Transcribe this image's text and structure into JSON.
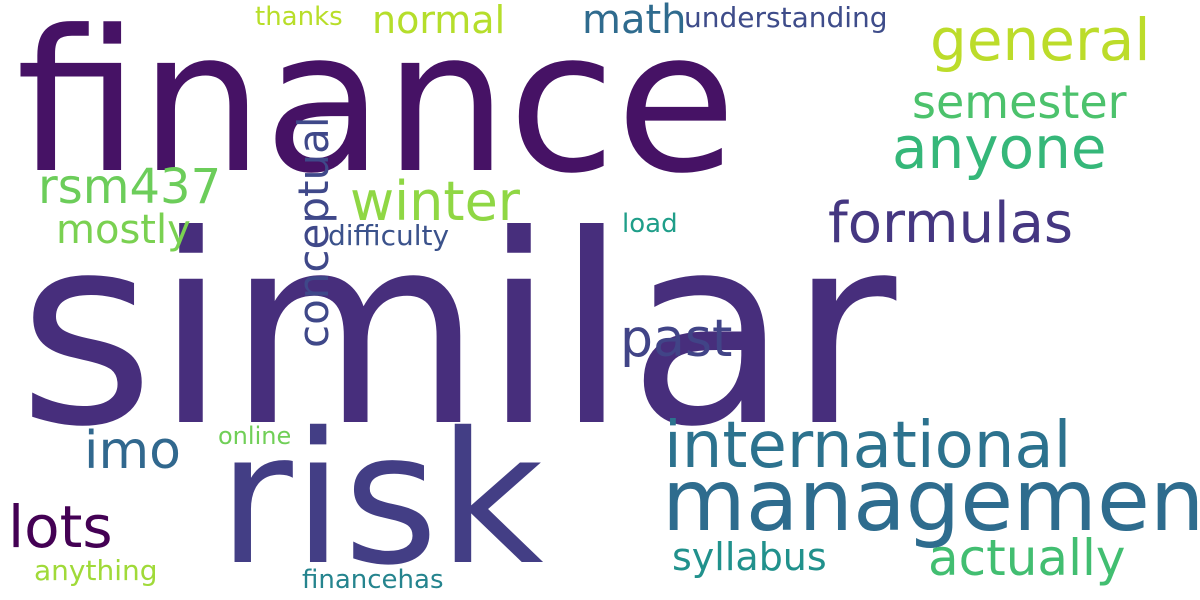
{
  "words": [
    {
      "key": "similar",
      "text": "similar",
      "color": "#472e7c"
    },
    {
      "key": "finance",
      "text": "finance",
      "color": "#461265"
    },
    {
      "key": "risk",
      "text": "risk",
      "color": "#433e85"
    },
    {
      "key": "management",
      "text": "management",
      "color": "#2e6c8e"
    },
    {
      "key": "general",
      "text": "general",
      "color": "#bcdc2a"
    },
    {
      "key": "international",
      "text": "international",
      "color": "#2c728e"
    },
    {
      "key": "anyone",
      "text": "anyone",
      "color": "#35b779"
    },
    {
      "key": "semester",
      "text": "semester",
      "color": "#4cc26c"
    },
    {
      "key": "winter",
      "text": "winter",
      "color": "#8fd744"
    },
    {
      "key": "formulas",
      "text": "formulas",
      "color": "#453781"
    },
    {
      "key": "rsm437",
      "text": "rsm437",
      "color": "#6ccd5a"
    },
    {
      "key": "conceptual",
      "text": "conceptual",
      "color": "#3f4889"
    },
    {
      "key": "past",
      "text": "past",
      "color": "#414487"
    },
    {
      "key": "actually",
      "text": "actually",
      "color": "#42be71"
    },
    {
      "key": "lots",
      "text": "lots",
      "color": "#440154"
    },
    {
      "key": "imo",
      "text": "imo",
      "color": "#31688e"
    },
    {
      "key": "normal",
      "text": "normal",
      "color": "#b5de2b"
    },
    {
      "key": "math",
      "text": "math",
      "color": "#2f6b8e"
    },
    {
      "key": "mostly",
      "text": "mostly",
      "color": "#7ad151"
    },
    {
      "key": "syllabus",
      "text": "syllabus",
      "color": "#21918c"
    },
    {
      "key": "difficulty",
      "text": "difficulty",
      "color": "#3b528b"
    },
    {
      "key": "understanding",
      "text": "understanding",
      "color": "#3e4c8a"
    },
    {
      "key": "thanks",
      "text": "thanks",
      "color": "#b8de29"
    },
    {
      "key": "load",
      "text": "load",
      "color": "#1f9e89"
    },
    {
      "key": "online",
      "text": "online",
      "color": "#70cf57"
    },
    {
      "key": "anything",
      "text": "anything",
      "color": "#a0da39"
    },
    {
      "key": "financehas",
      "text": "financehas",
      "color": "#25848e"
    }
  ]
}
